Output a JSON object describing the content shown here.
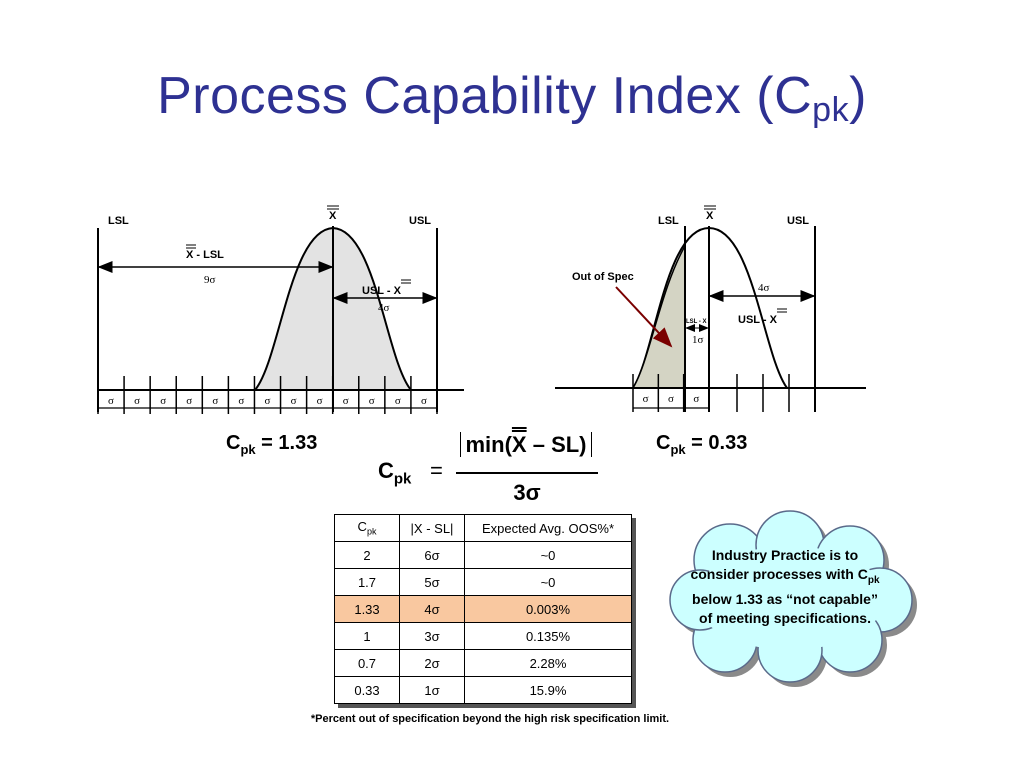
{
  "title": {
    "main": "Process Capability Index (C",
    "sub": "pk",
    "close": ")"
  },
  "sigma_symbol": "σ",
  "left_chart": {
    "lsl_label": "LSL",
    "usl_label": "USL",
    "mean_label": "X",
    "mean_minus_lsl": "X - LSL",
    "mean_minus_lsl_sigma": "9σ",
    "usl_minus_mean": "USL - X",
    "usl_minus_mean_sigma": "4σ",
    "sigma_tick_count": 13,
    "cpk_result": {
      "prefix": "C",
      "sub": "pk",
      "value": " = 1.33"
    }
  },
  "right_chart": {
    "lsl_label": "LSL",
    "usl_label": "USL",
    "mean_label": "X",
    "out_of_spec_label": "Out of Spec",
    "lsl_minus_mean": "LSL - X",
    "lsl_minus_mean_sigma": "1σ",
    "usl_minus_mean": "USL - X",
    "usl_minus_mean_sigma": "4σ",
    "sigma_tick_count": 3,
    "cpk_result": {
      "prefix": "C",
      "sub": "pk",
      "value": " = 0.33"
    }
  },
  "formula": {
    "lhs": "C",
    "lhs_sub": "pk",
    "equals": "=",
    "numerator_func": "min(",
    "numerator_x": "X",
    "numerator_rest": " – SL)",
    "denominator": "3σ"
  },
  "table": {
    "headers": [
      {
        "main": "C",
        "sub": "pk"
      },
      {
        "main": "|X - SL|"
      },
      {
        "main": "Expected Avg. OOS%*"
      }
    ],
    "rows": [
      [
        "2",
        "6σ",
        "~0"
      ],
      [
        "1.7",
        "5σ",
        "~0"
      ],
      [
        "1.33",
        "4σ",
        "0.003%"
      ],
      [
        "1",
        "3σ",
        "0.135%"
      ],
      [
        "0.7",
        "2σ",
        "2.28%"
      ],
      [
        "0.33",
        "1σ",
        "15.9%"
      ]
    ],
    "highlight_row_index": 2,
    "highlight_color": "#f9c8a0"
  },
  "callout": {
    "line1": "Industry Practice is to consider processes with C",
    "sub": "pk",
    "line2": " below 1.33 as “not capable” of meeting specifications.",
    "fill": "#ccffff"
  },
  "footnote": "*Percent out of specification beyond the high risk specification limit.",
  "colors": {
    "title": "#2e3192",
    "curve_fill": "#e3e3e3",
    "out_of_spec_fill": "#d4d4c4",
    "arrow": "#7a0000"
  }
}
